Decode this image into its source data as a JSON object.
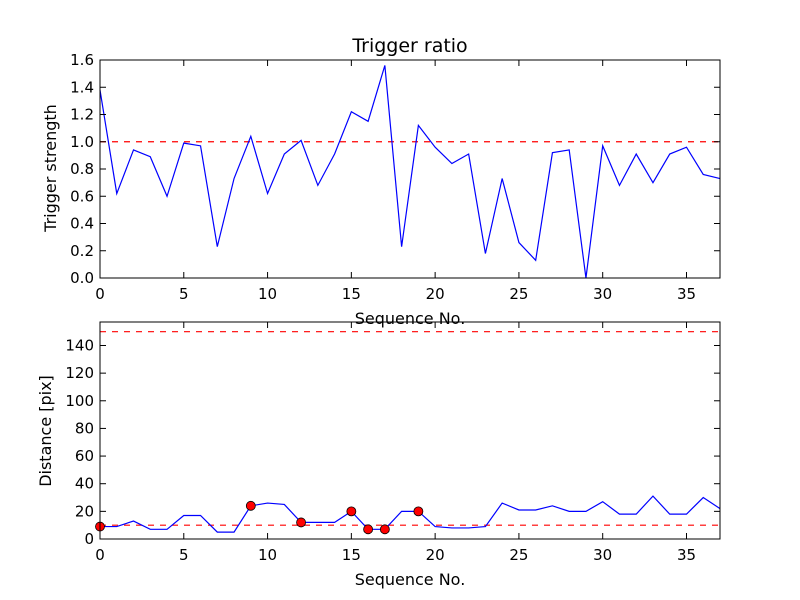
{
  "chart_data": [
    {
      "type": "line",
      "title": "Trigger ratio",
      "xlabel": "Sequence No.",
      "ylabel": "Trigger strength",
      "xlim": [
        0,
        37
      ],
      "ylim": [
        0,
        1.6
      ],
      "xticks": [
        "0",
        "5",
        "10",
        "15",
        "20",
        "25",
        "30",
        "35"
      ],
      "yticks": [
        "0.0",
        "0.2",
        "0.4",
        "0.6",
        "0.8",
        "1.0",
        "1.2",
        "1.4",
        "1.6"
      ],
      "grid": false,
      "colors": {
        "line": "#0000ff",
        "threshold": "#ff0000"
      },
      "thresholds": [
        1.0
      ],
      "series": [
        {
          "x": [
            0,
            1,
            2,
            3,
            4,
            5,
            6,
            7,
            8,
            9,
            10,
            11,
            12,
            13,
            14,
            15,
            16,
            17,
            18,
            19,
            20,
            21,
            22,
            23,
            24,
            25,
            26,
            27,
            28,
            29,
            30,
            31,
            32,
            33,
            34,
            35,
            36,
            37
          ],
          "values": [
            1.38,
            0.62,
            0.94,
            0.89,
            0.6,
            0.99,
            0.97,
            0.23,
            0.73,
            1.04,
            0.62,
            0.91,
            1.01,
            0.68,
            0.91,
            1.22,
            1.15,
            1.56,
            0.23,
            1.12,
            0.96,
            0.84,
            0.91,
            0.18,
            0.73,
            0.26,
            0.13,
            0.92,
            0.94,
            0.0,
            0.97,
            0.68,
            0.91,
            0.7,
            0.91,
            0.96,
            0.76,
            0.73
          ]
        }
      ]
    },
    {
      "type": "line",
      "title": "",
      "xlabel": "Sequence No.",
      "ylabel": "Distance [pix]",
      "xlim": [
        0,
        37
      ],
      "ylim": [
        0,
        157
      ],
      "xticks": [
        "0",
        "5",
        "10",
        "15",
        "20",
        "25",
        "30",
        "35"
      ],
      "yticks": [
        "0",
        "20",
        "40",
        "60",
        "80",
        "100",
        "120",
        "140"
      ],
      "grid": false,
      "colors": {
        "line": "#0000ff",
        "threshold": "#ff0000",
        "marker": "#ff0000"
      },
      "thresholds": [
        10,
        150
      ],
      "series": [
        {
          "x": [
            0,
            1,
            2,
            3,
            4,
            5,
            6,
            7,
            8,
            9,
            10,
            11,
            12,
            13,
            14,
            15,
            16,
            17,
            18,
            19,
            20,
            21,
            22,
            23,
            24,
            25,
            26,
            27,
            28,
            29,
            30,
            31,
            32,
            33,
            34,
            35,
            36,
            37
          ],
          "values": [
            9,
            9,
            13,
            7,
            7,
            17,
            17,
            5,
            5,
            24,
            26,
            25,
            12,
            12,
            12,
            20,
            7,
            7,
            20,
            20,
            9,
            8,
            8,
            9,
            26,
            21,
            21,
            24,
            20,
            20,
            27,
            18,
            18,
            31,
            18,
            18,
            30,
            22
          ]
        }
      ],
      "markers": {
        "x": [
          0,
          9,
          12,
          15,
          16,
          17,
          19
        ],
        "values": [
          9,
          24,
          12,
          20,
          7,
          7,
          20
        ]
      }
    }
  ]
}
